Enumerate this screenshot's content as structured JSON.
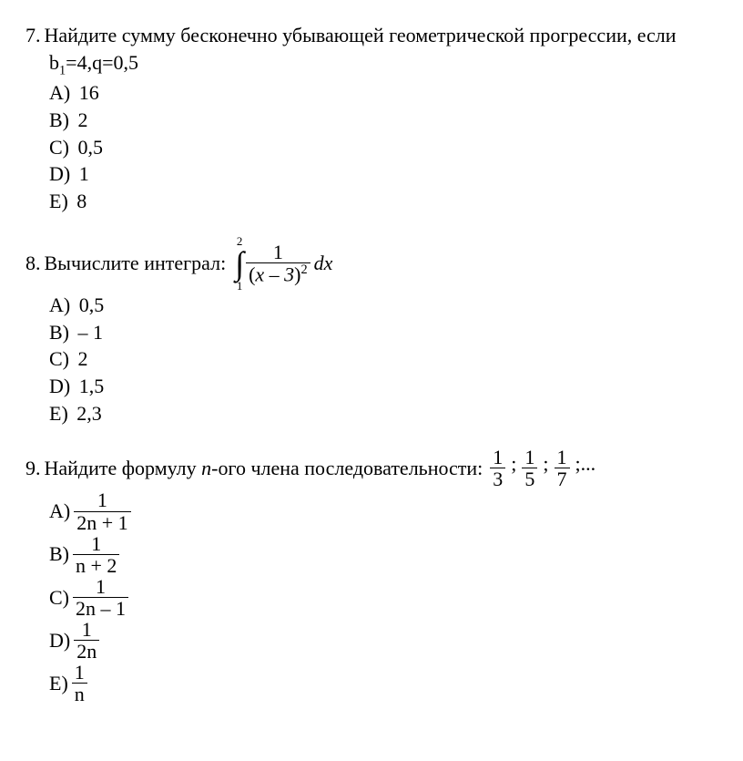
{
  "q7": {
    "number": "7.",
    "text": "Найдите сумму бесконечно убывающей геометрической прогрессии, если",
    "sub_html": "b<sub>1</sub>=4,q=0,5",
    "answers": {
      "A": "16",
      "B": "2",
      "C": "0,5",
      "D": "1",
      "E": "8"
    }
  },
  "q8": {
    "number": "8.",
    "text_prefix": "Вычислите интеграл:",
    "integral": {
      "upper": "2",
      "lower": "1",
      "numerator": "1",
      "den_expr": "x – 3",
      "den_power": "2",
      "dx": "dx"
    },
    "answers": {
      "A": "0,5",
      "B": "– 1",
      "C": "2",
      "D": "1,5",
      "E": "2,3"
    }
  },
  "q9": {
    "number": "9.",
    "text_prefix": "Найдите формулу ",
    "n_letter": "n",
    "text_suffix": "-ого члена последовательности:",
    "sequence": [
      {
        "num": "1",
        "den": "3"
      },
      {
        "num": "1",
        "den": "5"
      },
      {
        "num": "1",
        "den": "7"
      }
    ],
    "trailing": ";...",
    "answers": {
      "A": {
        "num": "1",
        "den": "2n + 1"
      },
      "B": {
        "num": "1",
        "den": "n + 2"
      },
      "C": {
        "num": "1",
        "den": "2n – 1"
      },
      "D": {
        "num": "1",
        "den": "2n"
      },
      "E": {
        "num": "1",
        "den": "n"
      }
    }
  },
  "labels": {
    "A": "A)",
    "B": "B)",
    "C": "C)",
    "D": "D)",
    "E": "E)"
  },
  "style": {
    "answer_font_size": 22,
    "frac_font_size": 20
  }
}
